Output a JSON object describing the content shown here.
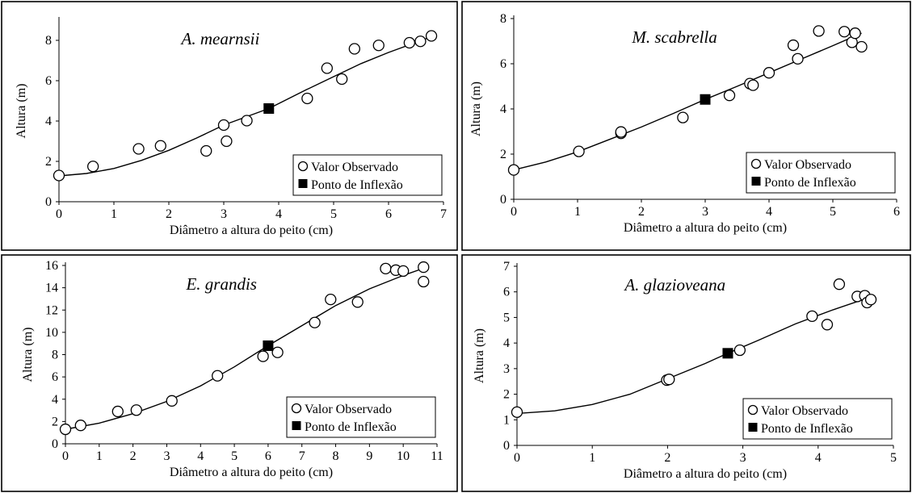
{
  "chart_data": [
    {
      "type": "scatter",
      "species": "A. mearnsii",
      "xlabel": "Diâmetro a altura do peito (cm)",
      "ylabel": "Altura (m)",
      "xlim": [
        0,
        7
      ],
      "ylim": [
        0,
        9
      ],
      "xticks": [
        0,
        1,
        2,
        3,
        4,
        5,
        6,
        7
      ],
      "yticks": [
        0,
        2,
        4,
        6,
        8
      ],
      "legend": [
        "Valor Observado",
        "Ponto de Inflexão"
      ],
      "legend_position": "bottom-right",
      "observed": [
        [
          0,
          1.3
        ],
        [
          0.62,
          1.75
        ],
        [
          1.45,
          2.62
        ],
        [
          1.85,
          2.77
        ],
        [
          2.68,
          2.52
        ],
        [
          3.0,
          3.8
        ],
        [
          3.05,
          3.0
        ],
        [
          3.42,
          4.02
        ],
        [
          4.52,
          5.12
        ],
        [
          4.88,
          6.62
        ],
        [
          5.15,
          6.08
        ],
        [
          5.38,
          7.58
        ],
        [
          5.82,
          7.75
        ],
        [
          6.38,
          7.88
        ],
        [
          6.58,
          7.95
        ],
        [
          6.78,
          8.22
        ]
      ],
      "inflection": [
        3.82,
        4.62
      ],
      "fitted": [
        [
          0,
          1.28
        ],
        [
          0.5,
          1.4
        ],
        [
          1.0,
          1.65
        ],
        [
          1.5,
          2.05
        ],
        [
          2.0,
          2.55
        ],
        [
          2.5,
          3.15
        ],
        [
          3.0,
          3.8
        ],
        [
          3.5,
          4.3
        ],
        [
          3.82,
          4.62
        ],
        [
          4.5,
          5.55
        ],
        [
          5.0,
          6.2
        ],
        [
          5.5,
          6.85
        ],
        [
          6.0,
          7.4
        ],
        [
          6.5,
          7.9
        ],
        [
          6.8,
          8.2
        ]
      ]
    },
    {
      "type": "scatter",
      "species": "M. scabrella",
      "xlabel": "Diâmetro a altura do peito (cm)",
      "ylabel": "Altura (m)",
      "xlim": [
        0,
        6
      ],
      "ylim": [
        0,
        8
      ],
      "xticks": [
        0,
        1,
        2,
        3,
        4,
        5,
        6
      ],
      "yticks": [
        0,
        2,
        4,
        6,
        8
      ],
      "legend": [
        "Valor Observado",
        "Ponto de Inflexão"
      ],
      "legend_position": "bottom-right",
      "observed": [
        [
          0,
          1.3
        ],
        [
          1.02,
          2.12
        ],
        [
          1.68,
          2.92
        ],
        [
          1.68,
          2.98
        ],
        [
          2.65,
          3.62
        ],
        [
          3.38,
          4.6
        ],
        [
          3.7,
          5.12
        ],
        [
          3.75,
          5.05
        ],
        [
          4.0,
          5.6
        ],
        [
          4.38,
          6.82
        ],
        [
          4.45,
          6.22
        ],
        [
          4.78,
          7.45
        ],
        [
          5.18,
          7.42
        ],
        [
          5.3,
          6.95
        ],
        [
          5.35,
          7.35
        ],
        [
          5.45,
          6.75
        ]
      ],
      "inflection": [
        3.0,
        4.42
      ],
      "fitted": [
        [
          0,
          1.3
        ],
        [
          0.5,
          1.65
        ],
        [
          1.0,
          2.1
        ],
        [
          1.5,
          2.65
        ],
        [
          2.0,
          3.2
        ],
        [
          2.5,
          3.8
        ],
        [
          3.0,
          4.42
        ],
        [
          3.5,
          5.0
        ],
        [
          4.0,
          5.6
        ],
        [
          4.5,
          6.2
        ],
        [
          5.0,
          6.8
        ],
        [
          5.45,
          7.35
        ]
      ]
    },
    {
      "type": "scatter",
      "species": "E. grandis",
      "xlabel": "Diâmetro a altura do peito (cm)",
      "ylabel": "Altura (m)",
      "xlim": [
        0,
        11
      ],
      "ylim": [
        0,
        16
      ],
      "xticks": [
        0,
        1,
        2,
        3,
        4,
        5,
        6,
        7,
        8,
        9,
        10,
        11
      ],
      "yticks": [
        0,
        2,
        4,
        6,
        8,
        10,
        12,
        14,
        16
      ],
      "legend": [
        "Valor Observado",
        "Ponto de Inflexão"
      ],
      "legend_position": "bottom-right",
      "observed": [
        [
          0,
          1.3
        ],
        [
          0.45,
          1.65
        ],
        [
          1.55,
          2.9
        ],
        [
          2.1,
          3.02
        ],
        [
          3.15,
          3.85
        ],
        [
          4.5,
          6.1
        ],
        [
          5.85,
          7.85
        ],
        [
          6.28,
          8.2
        ],
        [
          7.38,
          10.88
        ],
        [
          7.85,
          12.95
        ],
        [
          8.65,
          12.72
        ],
        [
          9.48,
          15.72
        ],
        [
          9.78,
          15.58
        ],
        [
          10.0,
          15.5
        ],
        [
          10.6,
          15.85
        ],
        [
          10.6,
          14.55
        ]
      ],
      "inflection": [
        6.0,
        8.8
      ],
      "fitted": [
        [
          0,
          1.3
        ],
        [
          1.0,
          1.85
        ],
        [
          2.0,
          2.7
        ],
        [
          3.0,
          3.8
        ],
        [
          4.0,
          5.2
        ],
        [
          5.0,
          6.9
        ],
        [
          6.0,
          8.8
        ],
        [
          7.0,
          10.6
        ],
        [
          8.0,
          12.4
        ],
        [
          9.0,
          13.9
        ],
        [
          10.0,
          15.1
        ],
        [
          10.6,
          15.75
        ]
      ]
    },
    {
      "type": "scatter",
      "species": "A. glazioveana",
      "xlabel": "Diâmetro a altura do peito (cm)",
      "ylabel": "Altura (m)",
      "xlim": [
        0,
        5
      ],
      "ylim": [
        0,
        7
      ],
      "xticks": [
        0,
        1,
        2,
        3,
        4,
        5
      ],
      "yticks": [
        0,
        1,
        2,
        3,
        4,
        5,
        6,
        7
      ],
      "legend": [
        "Valor Observado",
        "Ponto de Inflexão"
      ],
      "legend_position": "bottom-right",
      "observed": [
        [
          0,
          1.3
        ],
        [
          1.99,
          2.55
        ],
        [
          2.02,
          2.58
        ],
        [
          2.96,
          3.72
        ],
        [
          3.92,
          5.05
        ],
        [
          4.12,
          4.72
        ],
        [
          4.28,
          6.3
        ],
        [
          4.52,
          5.82
        ],
        [
          4.62,
          5.85
        ],
        [
          4.65,
          5.58
        ],
        [
          4.7,
          5.7
        ]
      ],
      "inflection": [
        2.8,
        3.6
      ],
      "fitted": [
        [
          0,
          1.25
        ],
        [
          0.5,
          1.35
        ],
        [
          1.0,
          1.6
        ],
        [
          1.5,
          2.0
        ],
        [
          2.0,
          2.6
        ],
        [
          2.5,
          3.2
        ],
        [
          2.8,
          3.6
        ],
        [
          3.2,
          4.1
        ],
        [
          3.7,
          4.75
        ],
        [
          4.2,
          5.3
        ],
        [
          4.7,
          5.8
        ]
      ]
    }
  ]
}
